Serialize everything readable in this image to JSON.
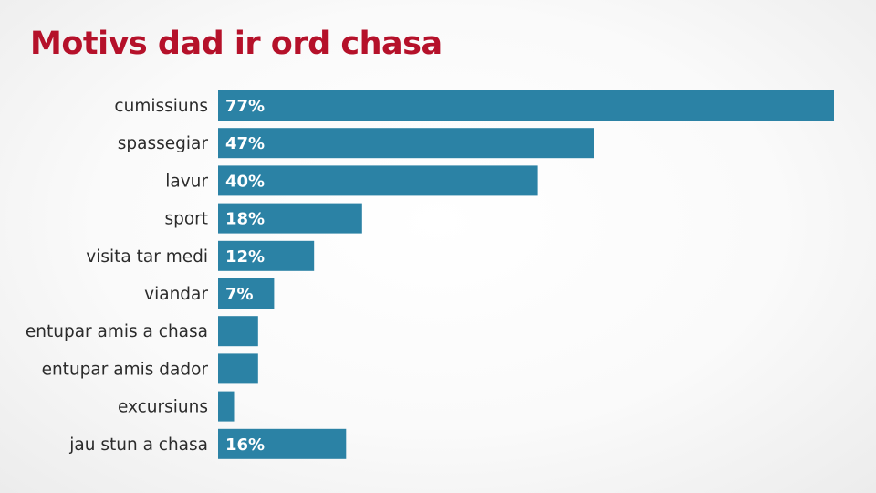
{
  "title": "Motivs dad ir ord chasa",
  "colors": {
    "title": "#b5112a",
    "bar": "#2b82a5",
    "label": "#2b2b2b",
    "value_label": "#ffffff"
  },
  "chart_data": {
    "type": "bar",
    "orientation": "horizontal",
    "title": "Motivs dad ir ord chasa",
    "categories": [
      "cumissiuns",
      "spassegiar",
      "lavur",
      "sport",
      "visita tar medi",
      "viandar",
      "entupar amis a chasa",
      "entupar amis dador",
      "excursiuns",
      "jau stun a chasa"
    ],
    "values": [
      77,
      47,
      40,
      18,
      12,
      7,
      5,
      5,
      2,
      16
    ],
    "value_labels": [
      "77%",
      "47%",
      "40%",
      "18%",
      "12%",
      "7%",
      "",
      "",
      "",
      "16%"
    ],
    "unit": "%",
    "xlabel": "",
    "ylabel": "",
    "grid": false,
    "legend": "none"
  }
}
